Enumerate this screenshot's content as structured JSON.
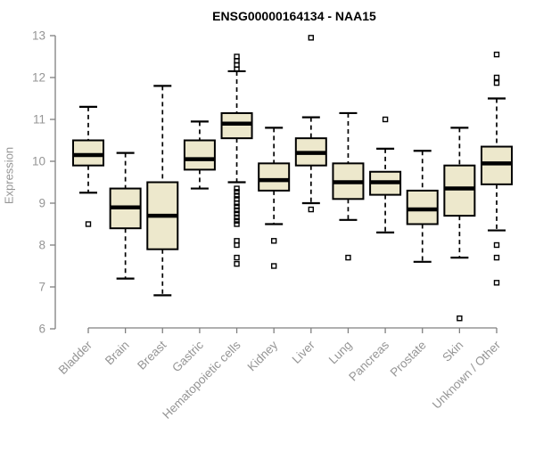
{
  "chart_data": {
    "type": "boxplot",
    "title": "ENSG00000164134 - NAA15",
    "ylabel": "Expression",
    "xlabel": "",
    "ylim": [
      6,
      13
    ],
    "yticks": [
      6,
      7,
      8,
      9,
      10,
      11,
      12,
      13
    ],
    "grid": "off",
    "categories": [
      "Bladder",
      "Brain",
      "Breast",
      "Gastric",
      "Hematopoietic cells",
      "Kidney",
      "Liver",
      "Lung",
      "Pancreas",
      "Prostate",
      "Skin",
      "Unknown / Other"
    ],
    "boxes": [
      {
        "category": "Bladder",
        "whisker_low": 9.25,
        "q1": 9.9,
        "median": 10.15,
        "q3": 10.5,
        "whisker_high": 11.3,
        "outliers": [
          8.5
        ]
      },
      {
        "category": "Brain",
        "whisker_low": 7.2,
        "q1": 8.4,
        "median": 8.9,
        "q3": 9.35,
        "whisker_high": 10.2,
        "outliers": []
      },
      {
        "category": "Breast",
        "whisker_low": 6.8,
        "q1": 7.9,
        "median": 8.7,
        "q3": 9.5,
        "whisker_high": 11.8,
        "outliers": []
      },
      {
        "category": "Gastric",
        "whisker_low": 9.35,
        "q1": 9.8,
        "median": 10.05,
        "q3": 10.5,
        "whisker_high": 10.95,
        "outliers": []
      },
      {
        "category": "Hematopoietic cells",
        "whisker_low": 9.5,
        "q1": 10.55,
        "median": 10.9,
        "q3": 11.15,
        "whisker_high": 12.15,
        "outliers": [
          12.5,
          12.4,
          12.3,
          12.2,
          9.35,
          9.27,
          9.18,
          9.1,
          9.0,
          8.92,
          8.83,
          8.75,
          8.66,
          8.58,
          8.5,
          8.1,
          8.0,
          7.7,
          7.55
        ]
      },
      {
        "category": "Kidney",
        "whisker_low": 8.5,
        "q1": 9.3,
        "median": 9.55,
        "q3": 9.95,
        "whisker_high": 10.8,
        "outliers": [
          8.1,
          7.5
        ]
      },
      {
        "category": "Liver",
        "whisker_low": 9.0,
        "q1": 9.9,
        "median": 10.2,
        "q3": 10.55,
        "whisker_high": 11.05,
        "outliers": [
          12.95,
          8.85
        ]
      },
      {
        "category": "Lung",
        "whisker_low": 8.6,
        "q1": 9.1,
        "median": 9.5,
        "q3": 9.95,
        "whisker_high": 11.15,
        "outliers": [
          7.7
        ]
      },
      {
        "category": "Pancreas",
        "whisker_low": 8.3,
        "q1": 9.2,
        "median": 9.5,
        "q3": 9.75,
        "whisker_high": 10.3,
        "outliers": [
          11.0
        ]
      },
      {
        "category": "Prostate",
        "whisker_low": 7.6,
        "q1": 8.5,
        "median": 8.85,
        "q3": 9.3,
        "whisker_high": 10.25,
        "outliers": []
      },
      {
        "category": "Skin",
        "whisker_low": 7.7,
        "q1": 8.7,
        "median": 9.35,
        "q3": 9.9,
        "whisker_high": 10.8,
        "outliers": [
          6.25
        ]
      },
      {
        "category": "Unknown / Other",
        "whisker_low": 8.35,
        "q1": 9.45,
        "median": 9.95,
        "q3": 10.35,
        "whisker_high": 11.5,
        "outliers": [
          12.55,
          12.0,
          11.87,
          8.0,
          7.7,
          7.1
        ]
      }
    ]
  },
  "colors": {
    "background": "#ffffff",
    "title": "#000000",
    "box_fill": "#ede8cc",
    "box_border": "#000000",
    "median": "#000000",
    "whisker": "#000000",
    "outlier": "#000000",
    "axis": "#808080",
    "tick_label": "#959595"
  }
}
